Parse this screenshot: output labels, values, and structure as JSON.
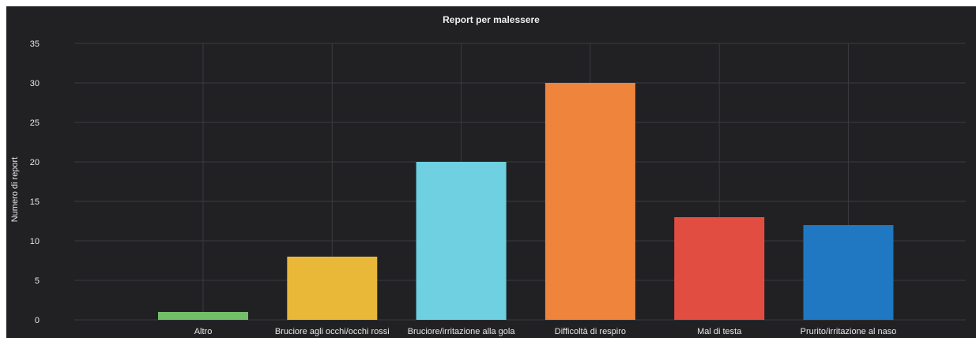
{
  "panel": {
    "title": "Report per malessere"
  },
  "chart_data": {
    "type": "bar",
    "title": "Report per malessere",
    "xlabel": "",
    "ylabel": "Numero di report",
    "ylim": [
      0,
      35
    ],
    "yticks": [
      0,
      5,
      10,
      15,
      20,
      25,
      30,
      35
    ],
    "grid": true,
    "categories": [
      "Altro",
      "Bruciore agli occhi/occhi rossi",
      "Bruciore/irritazione alla gola",
      "Difficoltà di respiro",
      "Mal di testa",
      "Prurito/irritazione al naso"
    ],
    "values": [
      1,
      8,
      20,
      30,
      13,
      12
    ],
    "colors": [
      "#73bf69",
      "#eab839",
      "#6ed0e0",
      "#ef843c",
      "#e24d42",
      "#1f78c1"
    ]
  }
}
